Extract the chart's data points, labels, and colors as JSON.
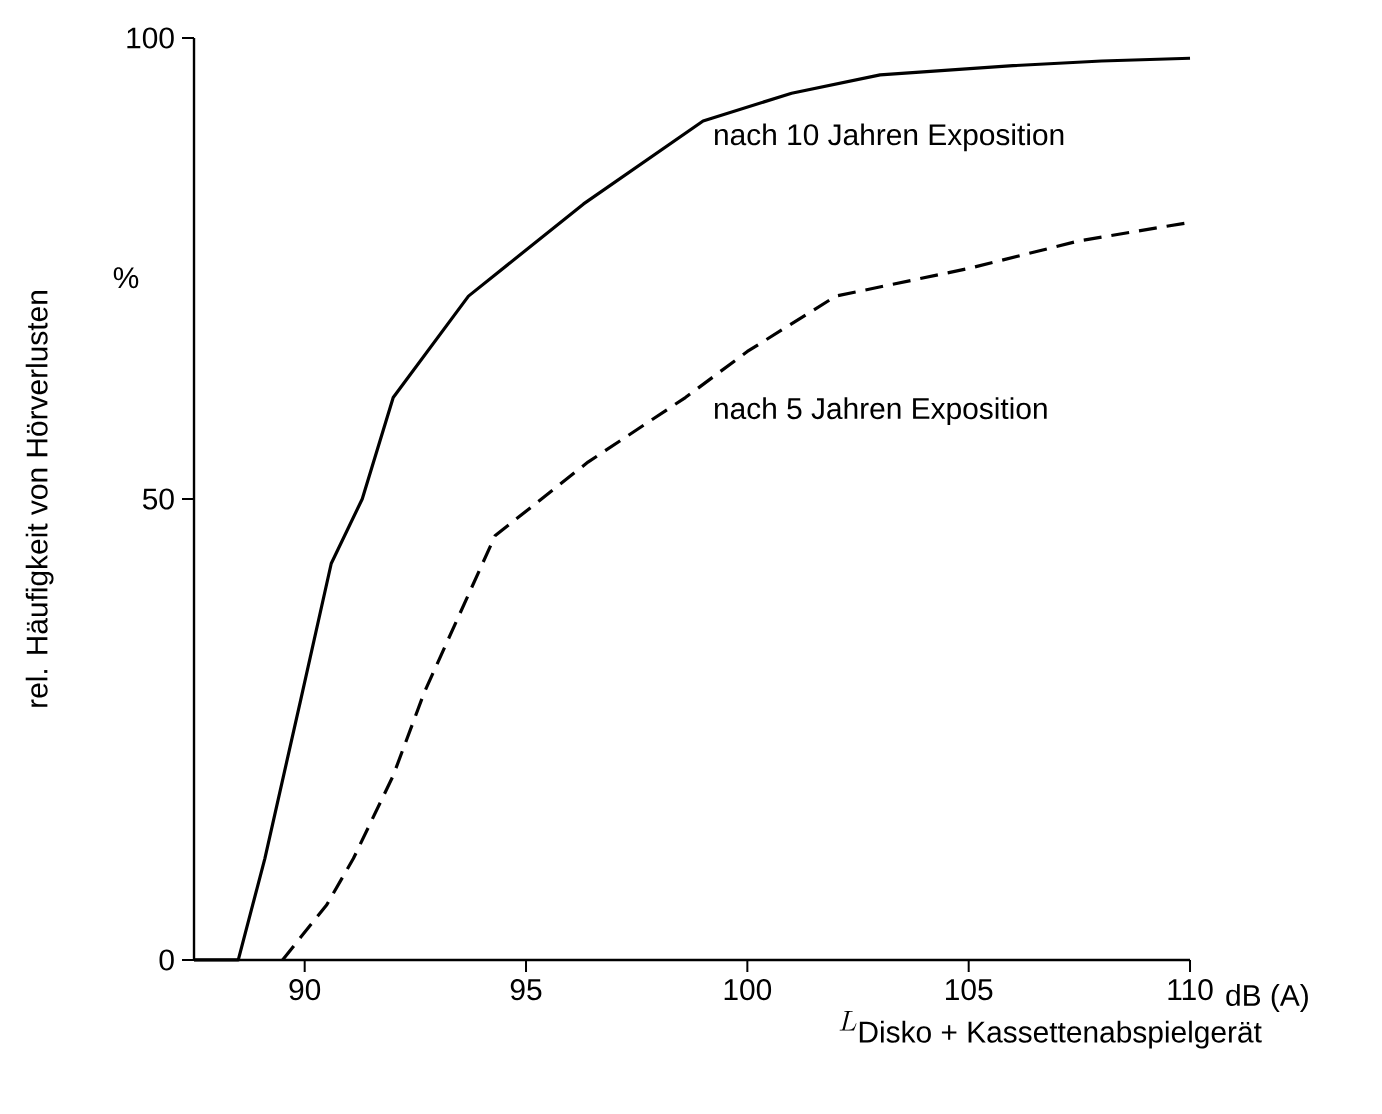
{
  "chart_data": {
    "type": "line",
    "ylabel": "rel. Häufigkeit von Hörverlusten",
    "xlabel": "L_{\\mbox{Disko + Kassettenabspielgerät}}",
    "xlim": [
      87.5,
      110
    ],
    "xticks": [
      90,
      95,
      100,
      105,
      110
    ],
    "ylim": [
      0,
      100
    ],
    "yticks": [
      0,
      50,
      100
    ],
    "grid": false,
    "marker": "none",
    "series": [
      {
        "color": "#000000",
        "line_style": "solid",
        "x": [
          87.5,
          88.5,
          89.1,
          89.9,
          90.6,
          91.3,
          92.0,
          93.7,
          96.3,
          99.0,
          101.0,
          103.0,
          106.0,
          108.0,
          110.0
        ],
        "values": [
          0,
          0,
          11,
          28,
          43,
          50,
          61,
          72,
          82,
          91,
          94,
          96,
          97,
          97.5,
          97.8
        ]
      },
      {
        "color": "#000000",
        "line_style": "dashed",
        "x": [
          89.5,
          90.5,
          91.1,
          92.0,
          92.7,
          94.3,
          96.4,
          98.6,
          100.0,
          102.0,
          105.0,
          107.5,
          110.0
        ],
        "values": [
          0,
          6,
          11,
          20,
          29,
          46,
          54,
          61,
          66,
          72,
          75,
          78,
          80
        ]
      }
    ],
    "annotations": [
      "nach 10 Jahren Exposition",
      "nach 5 Jahren Exposition",
      "%",
      "dB (A)"
    ]
  }
}
